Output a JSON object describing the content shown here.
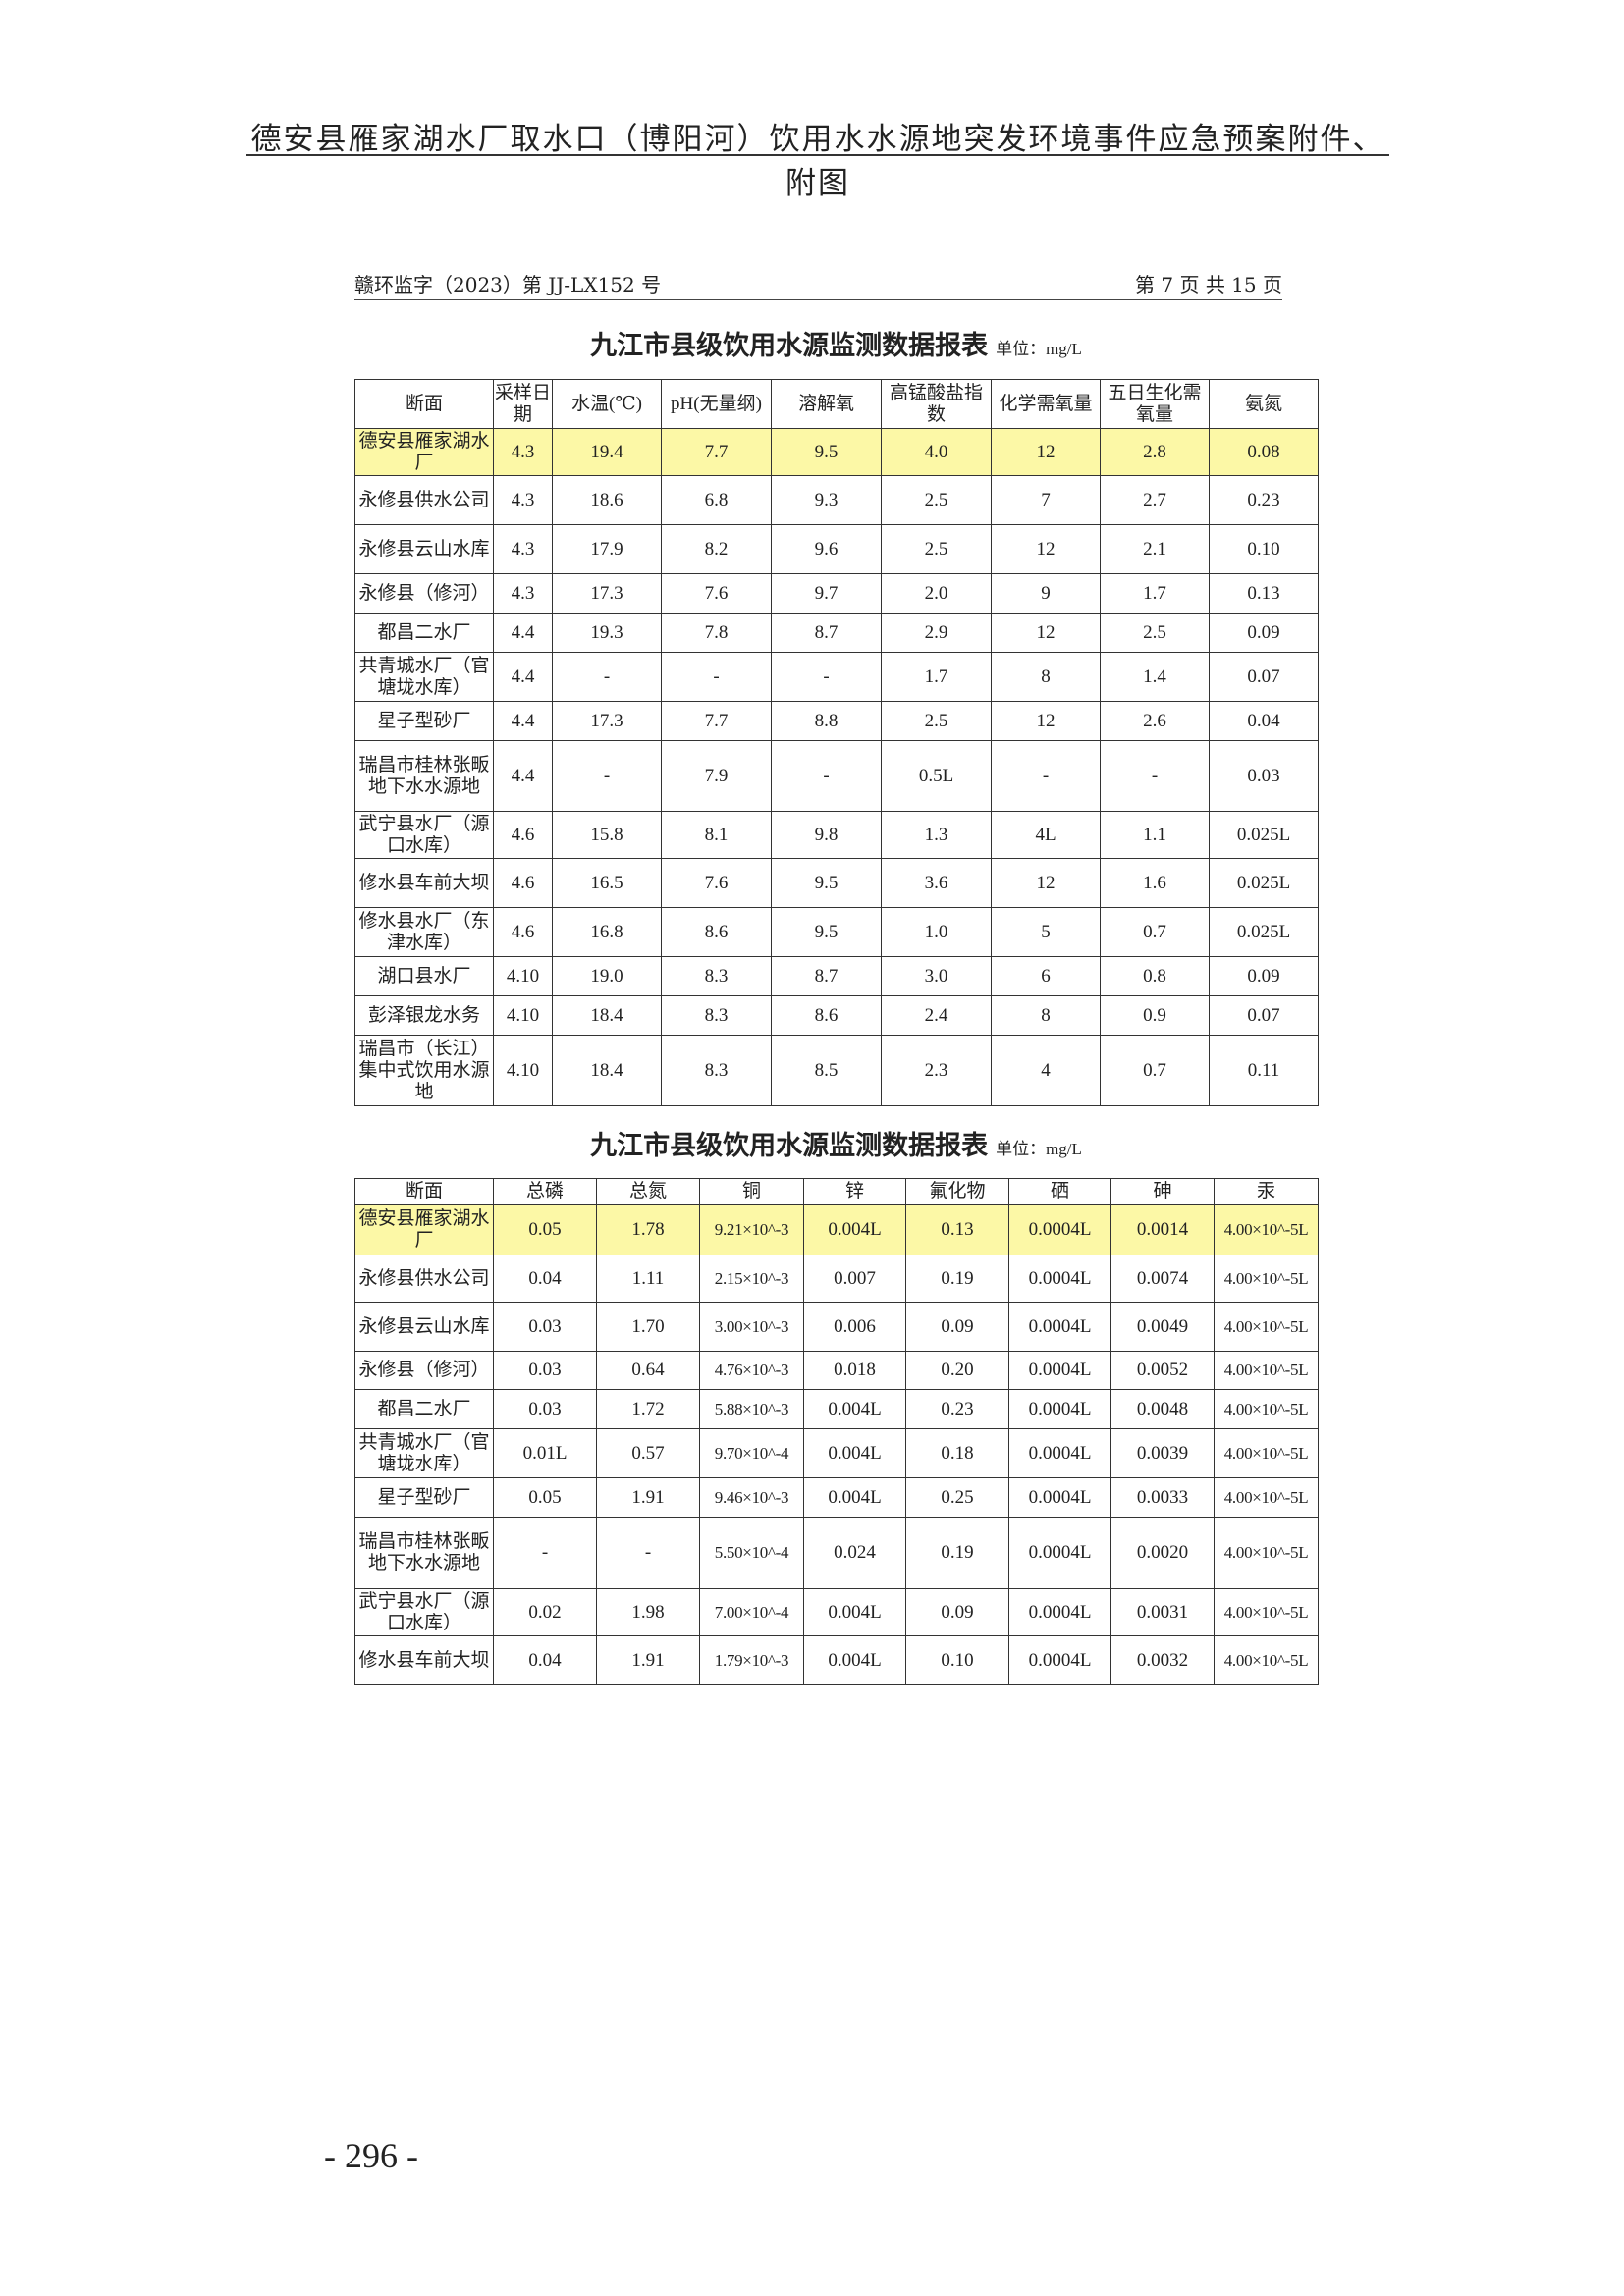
{
  "header": {
    "title": "德安县雁家湖水厂取水口（博阳河）饮用水水源地突发环境事件应急预案附件、附图"
  },
  "report": {
    "doc_number": "赣环监字（2023）第 JJ-LX152 号",
    "page_info": "第 7 页 共 15 页"
  },
  "highlight_color": "#fcf8a6",
  "table1": {
    "title": "九江市县级饮用水源监测数据报表",
    "unit": "单位：mg/L",
    "columns": [
      "断面",
      "采样日期",
      "水温(℃)",
      "pH(无量纲)",
      "溶解氧",
      "高锰酸盐指数",
      "化学需氧量",
      "五日生化需氧量",
      "氨氮"
    ],
    "rows": [
      [
        "德安县雁家湖水厂",
        "4.3",
        "19.4",
        "7.7",
        "9.5",
        "4.0",
        "12",
        "2.8",
        "0.08"
      ],
      [
        "永修县供水公司",
        "4.3",
        "18.6",
        "6.8",
        "9.3",
        "2.5",
        "7",
        "2.7",
        "0.23"
      ],
      [
        "永修县云山水库",
        "4.3",
        "17.9",
        "8.2",
        "9.6",
        "2.5",
        "12",
        "2.1",
        "0.10"
      ],
      [
        "永修县（修河）",
        "4.3",
        "17.3",
        "7.6",
        "9.7",
        "2.0",
        "9",
        "1.7",
        "0.13"
      ],
      [
        "都昌二水厂",
        "4.4",
        "19.3",
        "7.8",
        "8.7",
        "2.9",
        "12",
        "2.5",
        "0.09"
      ],
      [
        "共青城水厂（官塘垅水库）",
        "4.4",
        "-",
        "-",
        "-",
        "1.7",
        "8",
        "1.4",
        "0.07"
      ],
      [
        "星子型砂厂",
        "4.4",
        "17.3",
        "7.7",
        "8.8",
        "2.5",
        "12",
        "2.6",
        "0.04"
      ],
      [
        "瑞昌市桂林张畈地下水水源地",
        "4.4",
        "-",
        "7.9",
        "-",
        "0.5L",
        "-",
        "-",
        "0.03"
      ],
      [
        "武宁县水厂（源口水库）",
        "4.6",
        "15.8",
        "8.1",
        "9.8",
        "1.3",
        "4L",
        "1.1",
        "0.025L"
      ],
      [
        "修水县车前大坝",
        "4.6",
        "16.5",
        "7.6",
        "9.5",
        "3.6",
        "12",
        "1.6",
        "0.025L"
      ],
      [
        "修水县水厂（东津水库）",
        "4.6",
        "16.8",
        "8.6",
        "9.5",
        "1.0",
        "5",
        "0.7",
        "0.025L"
      ],
      [
        "湖口县水厂",
        "4.10",
        "19.0",
        "8.3",
        "8.7",
        "3.0",
        "6",
        "0.8",
        "0.09"
      ],
      [
        "彭泽银龙水务",
        "4.10",
        "18.4",
        "8.3",
        "8.6",
        "2.4",
        "8",
        "0.9",
        "0.07"
      ],
      [
        "瑞昌市（长江）集中式饮用水源地",
        "4.10",
        "18.4",
        "8.3",
        "8.5",
        "2.3",
        "4",
        "0.7",
        "0.11"
      ]
    ]
  },
  "table2": {
    "title": "九江市县级饮用水源监测数据报表",
    "unit": "单位：mg/L",
    "columns": [
      "断面",
      "总磷",
      "总氮",
      "铜",
      "锌",
      "氟化物",
      "硒",
      "砷",
      "汞"
    ],
    "rows": [
      [
        "德安县雁家湖水厂",
        "0.05",
        "1.78",
        "9.21×10^-3",
        "0.004L",
        "0.13",
        "0.0004L",
        "0.0014",
        "4.00×10^-5L"
      ],
      [
        "永修县供水公司",
        "0.04",
        "1.11",
        "2.15×10^-3",
        "0.007",
        "0.19",
        "0.0004L",
        "0.0074",
        "4.00×10^-5L"
      ],
      [
        "永修县云山水库",
        "0.03",
        "1.70",
        "3.00×10^-3",
        "0.006",
        "0.09",
        "0.0004L",
        "0.0049",
        "4.00×10^-5L"
      ],
      [
        "永修县（修河）",
        "0.03",
        "0.64",
        "4.76×10^-3",
        "0.018",
        "0.20",
        "0.0004L",
        "0.0052",
        "4.00×10^-5L"
      ],
      [
        "都昌二水厂",
        "0.03",
        "1.72",
        "5.88×10^-3",
        "0.004L",
        "0.23",
        "0.0004L",
        "0.0048",
        "4.00×10^-5L"
      ],
      [
        "共青城水厂（官塘垅水库）",
        "0.01L",
        "0.57",
        "9.70×10^-4",
        "0.004L",
        "0.18",
        "0.0004L",
        "0.0039",
        "4.00×10^-5L"
      ],
      [
        "星子型砂厂",
        "0.05",
        "1.91",
        "9.46×10^-3",
        "0.004L",
        "0.25",
        "0.0004L",
        "0.0033",
        "4.00×10^-5L"
      ],
      [
        "瑞昌市桂林张畈地下水水源地",
        "-",
        "-",
        "5.50×10^-4",
        "0.024",
        "0.19",
        "0.0004L",
        "0.0020",
        "4.00×10^-5L"
      ],
      [
        "武宁县水厂（源口水库）",
        "0.02",
        "1.98",
        "7.00×10^-4",
        "0.004L",
        "0.09",
        "0.0004L",
        "0.0031",
        "4.00×10^-5L"
      ],
      [
        "修水县车前大坝",
        "0.04",
        "1.91",
        "1.79×10^-3",
        "0.004L",
        "0.10",
        "0.0004L",
        "0.0032",
        "4.00×10^-5L"
      ]
    ]
  },
  "footer": {
    "page_number": "- 296 -"
  }
}
